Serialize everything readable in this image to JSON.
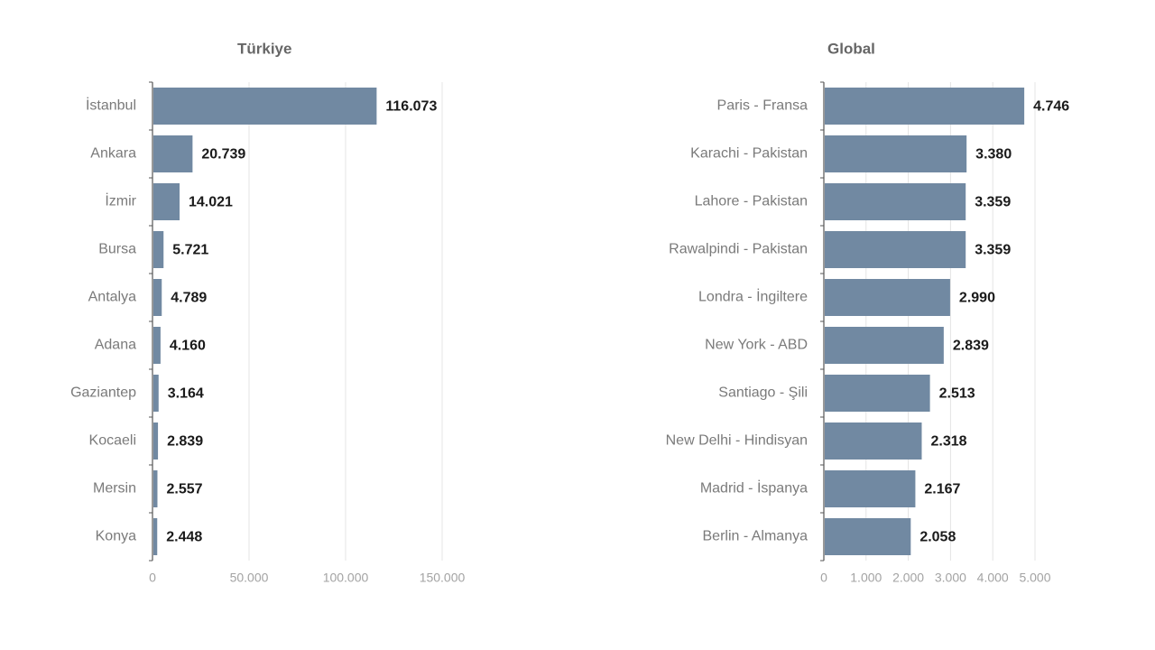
{
  "chart_data": [
    {
      "type": "bar",
      "orientation": "horizontal",
      "title": "Türkiye",
      "categories": [
        "İstanbul",
        "Ankara",
        "İzmir",
        "Bursa",
        "Antalya",
        "Adana",
        "Gaziantep",
        "Kocaeli",
        "Mersin",
        "Konya"
      ],
      "values": [
        116073,
        20739,
        14021,
        5721,
        4789,
        4160,
        3164,
        2839,
        2557,
        2448
      ],
      "value_labels": [
        "116.073",
        "20.739",
        "14.021",
        "5.721",
        "4.789",
        "4.160",
        "3.164",
        "2.839",
        "2.557",
        "2.448"
      ],
      "xlim": [
        0,
        150000
      ],
      "xticks": [
        0,
        50000,
        100000,
        150000
      ],
      "xtick_labels": [
        "0",
        "50.000",
        "100.000",
        "150.000"
      ],
      "grid": "vertical",
      "legend": "none",
      "bar_color": "#7189a2"
    },
    {
      "type": "bar",
      "orientation": "horizontal",
      "title": "Global",
      "categories": [
        "Paris - Fransa",
        "Karachi - Pakistan",
        "Lahore - Pakistan",
        "Rawalpindi - Pakistan",
        "Londra - İngiltere",
        "New York - ABD",
        "Santiago - Şili",
        "New Delhi - Hindisyan",
        "Madrid - İspanya",
        "Berlin - Almanya"
      ],
      "values": [
        4746,
        3380,
        3359,
        3359,
        2990,
        2839,
        2513,
        2318,
        2167,
        2058
      ],
      "value_labels": [
        "4.746",
        "3.380",
        "3.359",
        "3.359",
        "2.990",
        "2.839",
        "2.513",
        "2.318",
        "2.167",
        "2.058"
      ],
      "xlim": [
        0,
        5000
      ],
      "xticks": [
        0,
        1000,
        2000,
        3000,
        4000,
        5000
      ],
      "xtick_labels": [
        "0",
        "1.000",
        "2.000",
        "3.000",
        "4.000",
        "5.000"
      ],
      "grid": "vertical",
      "legend": "none",
      "bar_color": "#7189a2"
    }
  ]
}
